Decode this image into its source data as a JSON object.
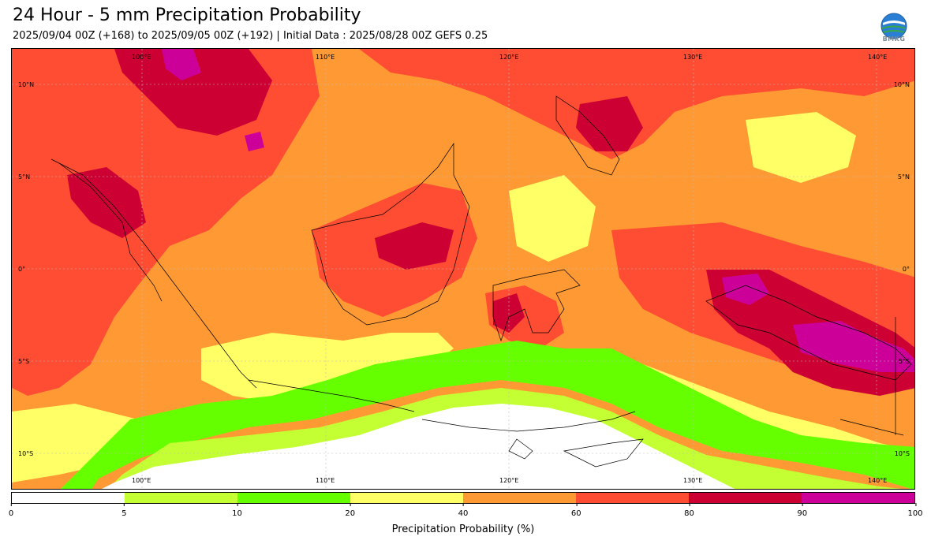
{
  "header": {
    "title": "24 Hour - 5 mm Precipitation Probability",
    "subtitle": "2025/09/04 00Z (+168) to 2025/09/05 00Z (+192) | Initial Data : 2025/08/28 00Z GEFS 0.25",
    "logo_text": "BMKG"
  },
  "map": {
    "lon_labels_top": [
      "100°E",
      "110°E",
      "120°E",
      "130°E",
      "140°E"
    ],
    "lon_labels_bottom": [
      "100°E",
      "110°E",
      "120°E",
      "130°E",
      "140°E"
    ],
    "lat_labels_left": [
      "10°N",
      "5°N",
      "0°",
      "5°S",
      "10°S"
    ],
    "lat_labels_right": [
      "10°N",
      "5°N",
      "0°",
      "5°S",
      "10°S"
    ]
  },
  "colorbar": {
    "bins": [
      {
        "from": 0,
        "to": 5,
        "color": "#ffffff"
      },
      {
        "from": 5,
        "to": 10,
        "color": "#c3ff33"
      },
      {
        "from": 10,
        "to": 20,
        "color": "#66ff00"
      },
      {
        "from": 20,
        "to": 40,
        "color": "#ffff66"
      },
      {
        "from": 40,
        "to": 60,
        "color": "#ff9933"
      },
      {
        "from": 60,
        "to": 80,
        "color": "#ff4d33"
      },
      {
        "from": 80,
        "to": 90,
        "color": "#cc0033"
      },
      {
        "from": 90,
        "to": 100,
        "color": "#cc0099"
      }
    ],
    "tick_labels": [
      "0",
      "5",
      "10",
      "20",
      "40",
      "60",
      "80",
      "90",
      "100"
    ],
    "label": "Precipitation Probability (%)"
  }
}
